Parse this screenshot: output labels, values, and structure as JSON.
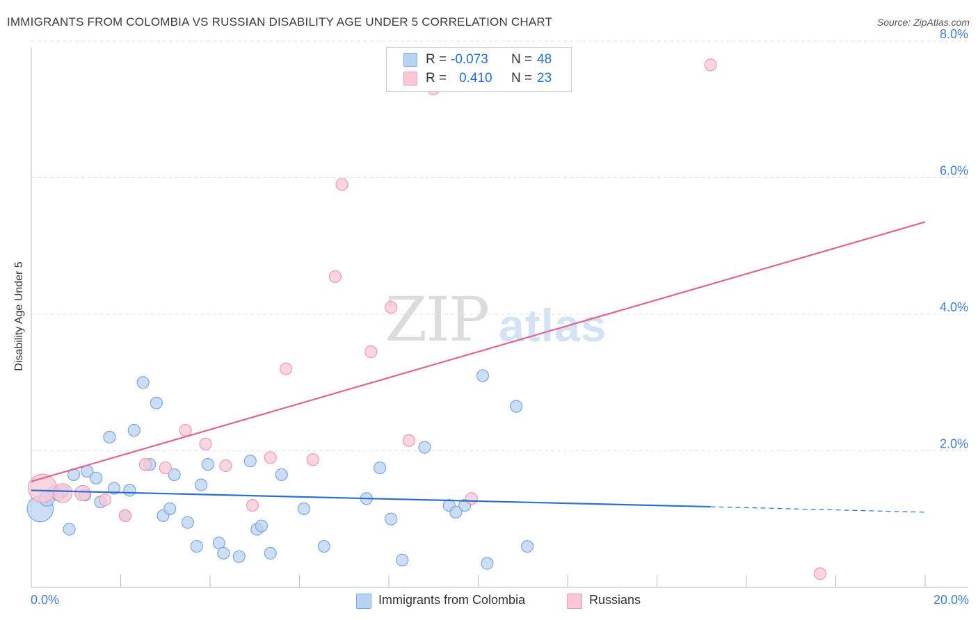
{
  "header": {
    "title": "IMMIGRANTS FROM COLOMBIA VS RUSSIAN DISABILITY AGE UNDER 5 CORRELATION CHART",
    "source": "Source: ZipAtlas.com"
  },
  "watermark": {
    "zip": "ZIP",
    "atlas": "atlas"
  },
  "stats": {
    "colombia": {
      "r_label": "R =",
      "r_value": "-0.073",
      "n_label": "N =",
      "n_value": "48"
    },
    "russians": {
      "r_label": "R =",
      "r_value": "0.410",
      "n_label": "N =",
      "n_value": "23"
    }
  },
  "legend": {
    "colombia": "Immigrants from Colombia",
    "russians": "Russians"
  },
  "colors": {
    "colombia_fill": "#b9d3f3",
    "colombia_stroke": "#7aa7de",
    "colombia_line": "#2a6fcf",
    "russians_fill": "#f9c7d6",
    "russians_stroke": "#ee9ab3",
    "russians_line": "#e0648e",
    "tick_label": "#3f7ed6",
    "grid": "#e3e3e3"
  },
  "chart_data": {
    "type": "scatter",
    "title": "IMMIGRANTS FROM COLOMBIA VS RUSSIAN DISABILITY AGE UNDER 5 CORRELATION CHART",
    "xlabel": "",
    "ylabel": "Disability Age Under 5",
    "xlim": [
      0,
      20
    ],
    "ylim": [
      0,
      8
    ],
    "x_tick_labels": [
      "0.0%",
      "20.0%"
    ],
    "y_ticks": [
      2,
      4,
      6,
      8
    ],
    "y_tick_labels": [
      "2.0%",
      "4.0%",
      "6.0%",
      "8.0%"
    ],
    "grid": true,
    "legend_position": "bottom-center",
    "series": [
      {
        "name": "Immigrants from Colombia",
        "color": "#b9d3f3",
        "points": [
          {
            "x": 0.2,
            "y": 1.15,
            "size": 2.2
          },
          {
            "x": 0.35,
            "y": 1.3,
            "size": 1.3
          },
          {
            "x": 0.5,
            "y": 1.4,
            "size": 1.0
          },
          {
            "x": 0.7,
            "y": 1.4,
            "size": 1.0
          },
          {
            "x": 0.85,
            "y": 0.85,
            "size": 1.0
          },
          {
            "x": 0.95,
            "y": 1.65,
            "size": 1.0
          },
          {
            "x": 1.25,
            "y": 1.7,
            "size": 1.0
          },
          {
            "x": 1.45,
            "y": 1.6,
            "size": 1.0
          },
          {
            "x": 1.55,
            "y": 1.25,
            "size": 1.0
          },
          {
            "x": 1.75,
            "y": 2.2,
            "size": 1.0
          },
          {
            "x": 1.85,
            "y": 1.45,
            "size": 1.0
          },
          {
            "x": 2.1,
            "y": 1.05,
            "size": 1.0
          },
          {
            "x": 2.2,
            "y": 1.42,
            "size": 1.0
          },
          {
            "x": 2.3,
            "y": 2.3,
            "size": 1.0
          },
          {
            "x": 2.5,
            "y": 3.0,
            "size": 1.0
          },
          {
            "x": 2.65,
            "y": 1.8,
            "size": 1.0
          },
          {
            "x": 2.8,
            "y": 2.7,
            "size": 1.0
          },
          {
            "x": 2.95,
            "y": 1.05,
            "size": 1.0
          },
          {
            "x": 3.1,
            "y": 1.15,
            "size": 1.0
          },
          {
            "x": 3.2,
            "y": 1.65,
            "size": 1.0
          },
          {
            "x": 3.5,
            "y": 0.95,
            "size": 1.0
          },
          {
            "x": 3.7,
            "y": 0.6,
            "size": 1.0
          },
          {
            "x": 3.8,
            "y": 1.5,
            "size": 1.0
          },
          {
            "x": 3.95,
            "y": 1.8,
            "size": 1.0
          },
          {
            "x": 4.2,
            "y": 0.65,
            "size": 1.0
          },
          {
            "x": 4.3,
            "y": 0.5,
            "size": 1.0
          },
          {
            "x": 4.65,
            "y": 0.45,
            "size": 1.0
          },
          {
            "x": 4.9,
            "y": 1.85,
            "size": 1.0
          },
          {
            "x": 5.05,
            "y": 0.85,
            "size": 1.0
          },
          {
            "x": 5.15,
            "y": 0.9,
            "size": 1.0
          },
          {
            "x": 5.35,
            "y": 0.5,
            "size": 1.0
          },
          {
            "x": 5.6,
            "y": 1.65,
            "size": 1.0
          },
          {
            "x": 6.1,
            "y": 1.15,
            "size": 1.0
          },
          {
            "x": 6.55,
            "y": 0.6,
            "size": 1.0
          },
          {
            "x": 7.5,
            "y": 1.3,
            "size": 1.0
          },
          {
            "x": 7.8,
            "y": 1.75,
            "size": 1.0
          },
          {
            "x": 8.05,
            "y": 1.0,
            "size": 1.0
          },
          {
            "x": 8.3,
            "y": 0.4,
            "size": 1.0
          },
          {
            "x": 8.8,
            "y": 2.05,
            "size": 1.0
          },
          {
            "x": 9.35,
            "y": 1.2,
            "size": 1.0
          },
          {
            "x": 9.5,
            "y": 1.1,
            "size": 1.0
          },
          {
            "x": 9.7,
            "y": 1.2,
            "size": 1.0
          },
          {
            "x": 10.1,
            "y": 3.1,
            "size": 1.0
          },
          {
            "x": 10.2,
            "y": 0.35,
            "size": 1.0
          },
          {
            "x": 10.85,
            "y": 2.65,
            "size": 1.0
          },
          {
            "x": 11.1,
            "y": 0.6,
            "size": 1.0
          },
          {
            "x": 1.2,
            "y": 1.35,
            "size": 1.0
          },
          {
            "x": 0.6,
            "y": 1.35,
            "size": 1.0
          }
        ]
      },
      {
        "name": "Russians",
        "color": "#f9c7d6",
        "points": [
          {
            "x": 0.25,
            "y": 1.45,
            "size": 2.4
          },
          {
            "x": 0.7,
            "y": 1.38,
            "size": 1.6
          },
          {
            "x": 1.15,
            "y": 1.38,
            "size": 1.3
          },
          {
            "x": 1.65,
            "y": 1.28,
            "size": 1.0
          },
          {
            "x": 2.1,
            "y": 1.05,
            "size": 1.0
          },
          {
            "x": 2.55,
            "y": 1.8,
            "size": 1.0
          },
          {
            "x": 3.0,
            "y": 1.75,
            "size": 1.0
          },
          {
            "x": 3.45,
            "y": 2.3,
            "size": 1.0
          },
          {
            "x": 3.9,
            "y": 2.1,
            "size": 1.0
          },
          {
            "x": 4.35,
            "y": 1.78,
            "size": 1.0
          },
          {
            "x": 4.95,
            "y": 1.2,
            "size": 1.0
          },
          {
            "x": 5.35,
            "y": 1.9,
            "size": 1.0
          },
          {
            "x": 5.7,
            "y": 3.2,
            "size": 1.0
          },
          {
            "x": 6.3,
            "y": 1.87,
            "size": 1.0
          },
          {
            "x": 6.8,
            "y": 4.55,
            "size": 1.0
          },
          {
            "x": 6.95,
            "y": 5.9,
            "size": 1.0
          },
          {
            "x": 7.6,
            "y": 3.45,
            "size": 1.0
          },
          {
            "x": 8.05,
            "y": 4.1,
            "size": 1.0
          },
          {
            "x": 8.45,
            "y": 2.15,
            "size": 1.0
          },
          {
            "x": 9.0,
            "y": 7.3,
            "size": 1.0
          },
          {
            "x": 9.85,
            "y": 1.3,
            "size": 1.0
          },
          {
            "x": 15.2,
            "y": 7.65,
            "size": 1.0
          },
          {
            "x": 17.65,
            "y": 0.2,
            "size": 1.0
          }
        ]
      }
    ],
    "trend_lines": [
      {
        "series": "Immigrants from Colombia",
        "x1": 0,
        "y1": 1.42,
        "x2": 15.2,
        "y2": 1.18,
        "dashed_to": 20,
        "dashed_y": 1.1
      },
      {
        "series": "Russians",
        "x1": 0,
        "y1": 1.55,
        "x2": 20,
        "y2": 5.35
      }
    ]
  }
}
